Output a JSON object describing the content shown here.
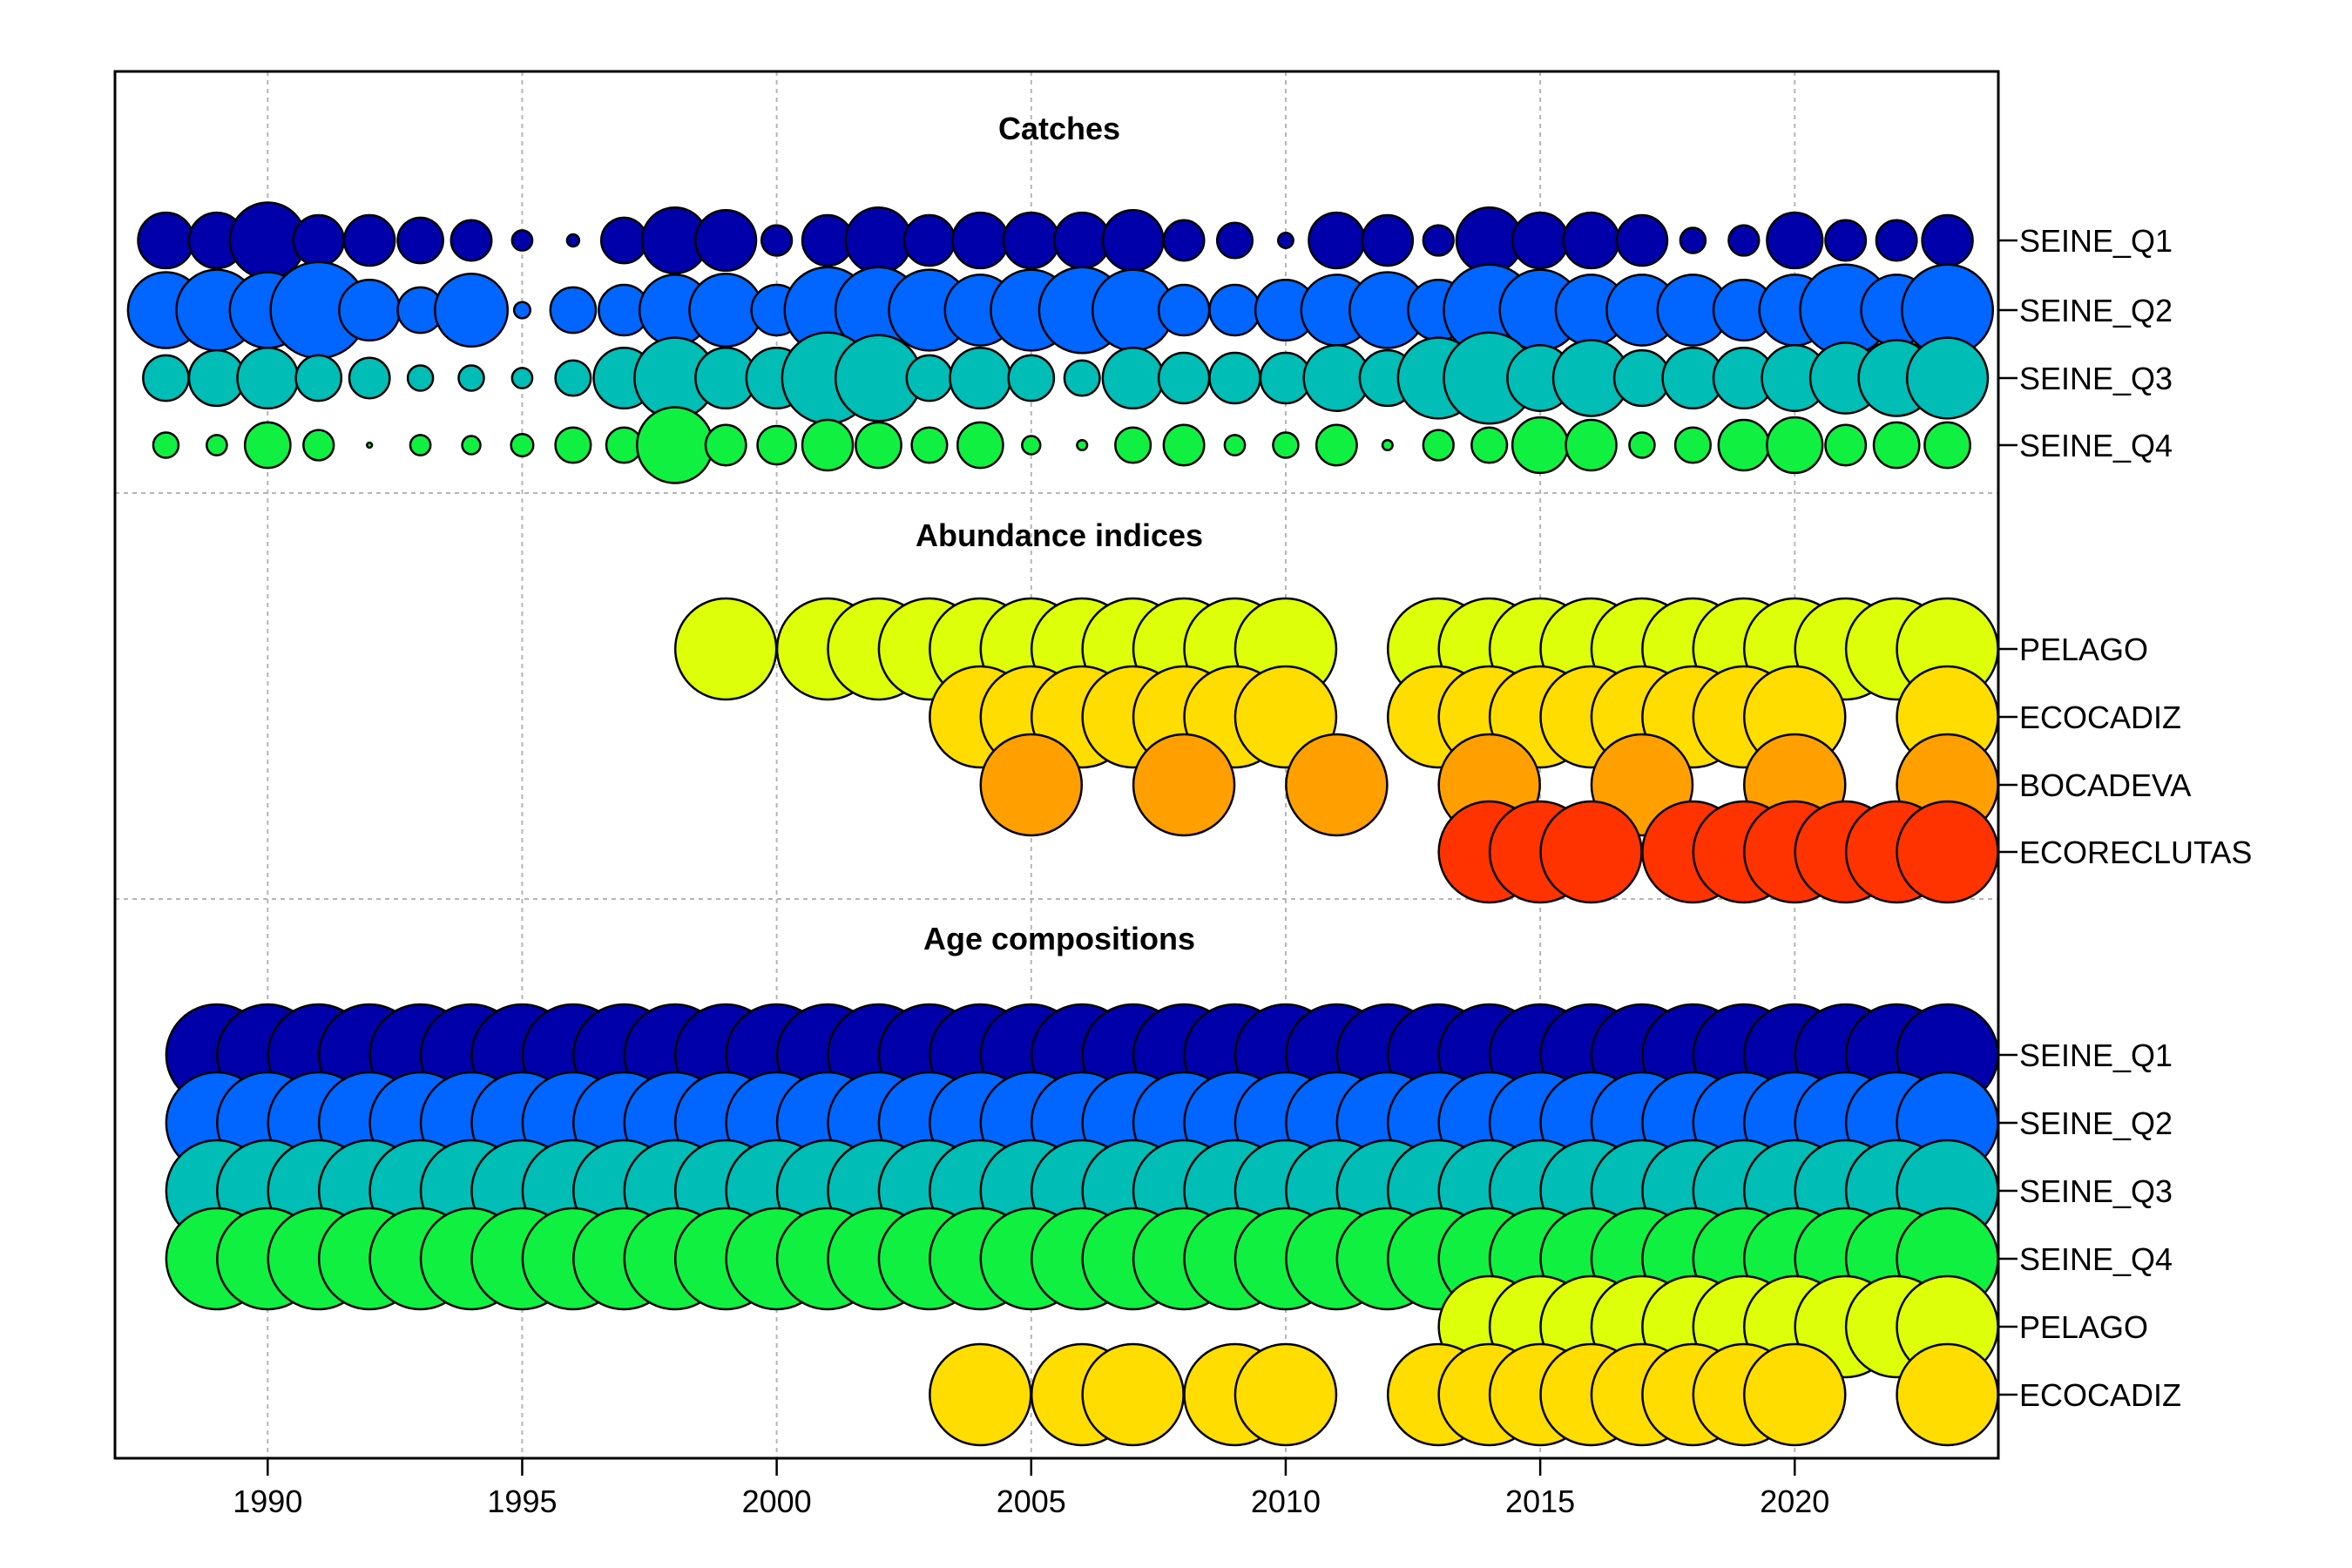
{
  "chart_data": {
    "type": "scatter",
    "subtype": "bubble",
    "x": [
      1988,
      1989,
      1990,
      1991,
      1992,
      1993,
      1994,
      1995,
      1996,
      1997,
      1998,
      1999,
      2000,
      2001,
      2002,
      2003,
      2004,
      2005,
      2006,
      2007,
      2008,
      2009,
      2010,
      2011,
      2012,
      2013,
      2014,
      2015,
      2016,
      2017,
      2018,
      2019,
      2020,
      2021,
      2022,
      2023
    ],
    "xticks": [
      1990,
      1995,
      2000,
      2005,
      2010,
      2015,
      2020
    ],
    "xlim": [
      1987,
      2024
    ],
    "grid": true,
    "colors": {
      "SEINE_Q1": "#0000AA",
      "SEINE_Q2": "#0066FF",
      "SEINE_Q3": "#00BDB5",
      "SEINE_Q4": "#10F040",
      "PELAGO": "#DDFF0A",
      "ECOCADIZ": "#FFDD00",
      "BOCADEVA": "#FFA000",
      "ECORECLUTAS": "#FF3300"
    },
    "sections": [
      {
        "title": "Catches",
        "series": [
          {
            "name": "SEINE_Q1",
            "values": [
              0.55,
              0.55,
              0.75,
              0.5,
              0.5,
              0.45,
              0.4,
              0.2,
              0.12,
              0.45,
              0.65,
              0.6,
              0.3,
              0.5,
              0.65,
              0.5,
              0.55,
              0.55,
              0.55,
              0.6,
              0.4,
              0.35,
              0.15,
              0.55,
              0.5,
              0.3,
              0.65,
              0.55,
              0.55,
              0.5,
              0.25,
              0.3,
              0.55,
              0.4,
              0.4,
              0.5
            ]
          },
          {
            "name": "SEINE_Q2",
            "values": [
              0.75,
              0.8,
              0.75,
              0.95,
              0.6,
              0.45,
              0.72,
              0.16,
              0.45,
              0.5,
              0.7,
              0.72,
              0.5,
              0.85,
              0.85,
              0.8,
              0.7,
              0.8,
              0.85,
              0.8,
              0.5,
              0.5,
              0.6,
              0.7,
              0.75,
              0.6,
              0.9,
              0.8,
              0.7,
              0.7,
              0.7,
              0.6,
              0.7,
              0.9,
              0.7,
              0.9
            ]
          },
          {
            "name": "SEINE_Q3",
            "values": [
              0.45,
              0.55,
              0.6,
              0.45,
              0.4,
              0.25,
              0.25,
              0.2,
              0.35,
              0.6,
              0.8,
              0.6,
              0.6,
              0.9,
              0.85,
              0.45,
              0.6,
              0.45,
              0.35,
              0.6,
              0.5,
              0.5,
              0.5,
              0.65,
              0.55,
              0.8,
              0.9,
              0.65,
              0.75,
              0.55,
              0.6,
              0.6,
              0.65,
              0.7,
              0.75,
              0.8
            ]
          },
          {
            "name": "SEINE_Q4",
            "values": [
              0.25,
              0.2,
              0.45,
              0.3,
              0.05,
              0.2,
              0.18,
              0.22,
              0.35,
              0.35,
              0.75,
              0.4,
              0.38,
              0.5,
              0.45,
              0.35,
              0.45,
              0.18,
              0.1,
              0.35,
              0.4,
              0.2,
              0.25,
              0.4,
              0.1,
              0.3,
              0.35,
              0.55,
              0.5,
              0.25,
              0.35,
              0.5,
              0.55,
              0.4,
              0.45,
              0.45
            ]
          }
        ]
      },
      {
        "title": "Abundance indices",
        "series": [
          {
            "name": "PELAGO",
            "values": [
              0,
              0,
              0,
              0,
              0,
              0,
              0,
              0,
              0,
              0,
              0,
              1,
              0,
              1,
              1,
              1,
              1,
              1,
              1,
              1,
              1,
              1,
              1,
              0,
              0,
              1,
              1,
              1,
              1,
              1,
              1,
              1,
              1,
              1,
              1,
              1
            ]
          },
          {
            "name": "ECOCADIZ",
            "values": [
              0,
              0,
              0,
              0,
              0,
              0,
              0,
              0,
              0,
              0,
              0,
              0,
              0,
              0,
              0,
              0,
              1,
              1,
              1,
              1,
              1,
              1,
              1,
              0,
              0,
              1,
              1,
              1,
              1,
              1,
              1,
              1,
              1,
              0,
              0,
              1
            ]
          },
          {
            "name": "BOCADEVA",
            "values": [
              0,
              0,
              0,
              0,
              0,
              0,
              0,
              0,
              0,
              0,
              0,
              0,
              0,
              0,
              0,
              0,
              0,
              1,
              0,
              0,
              1,
              0,
              0,
              1,
              0,
              0,
              1,
              0,
              0,
              1,
              0,
              0,
              1,
              0,
              0,
              1
            ]
          },
          {
            "name": "ECORECLUTAS",
            "values": [
              0,
              0,
              0,
              0,
              0,
              0,
              0,
              0,
              0,
              0,
              0,
              0,
              0,
              0,
              0,
              0,
              0,
              0,
              0,
              0,
              0,
              0,
              0,
              0,
              0,
              0,
              1,
              1,
              1,
              0,
              1,
              1,
              1,
              1,
              1,
              1
            ]
          }
        ]
      },
      {
        "title": "Age compositions",
        "series": [
          {
            "name": "SEINE_Q1",
            "values": [
              0,
              1,
              1,
              1,
              1,
              1,
              1,
              1,
              1,
              1,
              1,
              1,
              1,
              1,
              1,
              1,
              1,
              1,
              1,
              1,
              1,
              1,
              1,
              1,
              1,
              1,
              1,
              1,
              1,
              1,
              1,
              1,
              1,
              1,
              1,
              1
            ]
          },
          {
            "name": "SEINE_Q2",
            "values": [
              0,
              1,
              1,
              1,
              1,
              1,
              1,
              1,
              1,
              1,
              1,
              1,
              1,
              1,
              1,
              1,
              1,
              1,
              1,
              1,
              1,
              1,
              1,
              1,
              1,
              1,
              1,
              1,
              1,
              1,
              1,
              1,
              1,
              1,
              1,
              1
            ]
          },
          {
            "name": "SEINE_Q3",
            "values": [
              0,
              1,
              1,
              1,
              1,
              1,
              1,
              1,
              1,
              1,
              1,
              1,
              1,
              1,
              1,
              1,
              1,
              1,
              1,
              1,
              1,
              1,
              1,
              1,
              1,
              1,
              1,
              1,
              1,
              1,
              1,
              1,
              1,
              1,
              1,
              1
            ]
          },
          {
            "name": "SEINE_Q4",
            "values": [
              0,
              1,
              1,
              1,
              1,
              1,
              1,
              1,
              1,
              1,
              1,
              1,
              1,
              1,
              1,
              1,
              1,
              1,
              1,
              1,
              1,
              1,
              1,
              1,
              1,
              1,
              1,
              1,
              1,
              1,
              1,
              1,
              1,
              1,
              1,
              1
            ]
          },
          {
            "name": "PELAGO",
            "values": [
              0,
              0,
              0,
              0,
              0,
              0,
              0,
              0,
              0,
              0,
              0,
              0,
              0,
              0,
              0,
              0,
              0,
              0,
              0,
              0,
              0,
              0,
              0,
              0,
              0,
              0,
              1,
              1,
              1,
              1,
              1,
              1,
              1,
              1,
              1,
              1
            ]
          },
          {
            "name": "ECOCADIZ",
            "values": [
              0,
              0,
              0,
              0,
              0,
              0,
              0,
              0,
              0,
              0,
              0,
              0,
              0,
              0,
              0,
              0,
              1,
              0,
              1,
              1,
              0,
              1,
              1,
              0,
              0,
              1,
              1,
              1,
              1,
              1,
              1,
              1,
              1,
              0,
              0,
              1
            ]
          }
        ]
      }
    ]
  }
}
